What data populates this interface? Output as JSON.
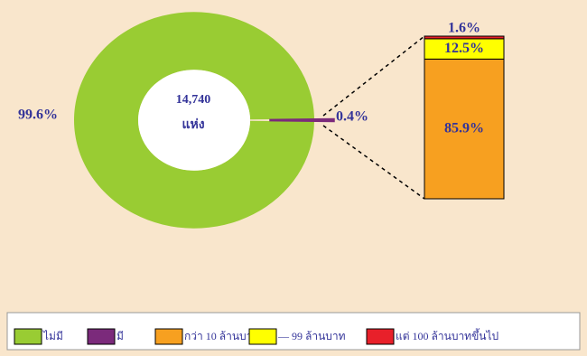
{
  "chart_data": {
    "type": "bar-of-pie",
    "center_text": [
      "14,740",
      "แห่ง"
    ],
    "pie": {
      "categories": [
        "ไม่มี",
        "มี"
      ],
      "values": [
        99.6,
        0.4
      ],
      "value_labels": [
        "99.6%",
        "0.4%"
      ],
      "colors": [
        "#99cc33",
        "#7b2a7b"
      ]
    },
    "bar": {
      "categories": [
        "กว่า 10 ล้านบาท",
        "— 99 ล้านบาท",
        "แต่ 100 ล้านบาทขึ้นไป"
      ],
      "values": [
        85.9,
        12.5,
        1.6
      ],
      "value_labels": [
        "85.9%",
        "12.5%",
        "1.6%"
      ],
      "colors": [
        "#f7a020",
        "#ffff00",
        "#e8202a"
      ]
    }
  }
}
